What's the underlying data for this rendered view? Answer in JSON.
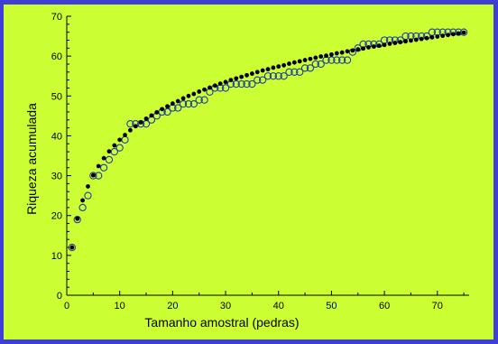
{
  "chart_data": {
    "type": "scatter",
    "title": "",
    "xlabel": "Tamanho amostral (pedras)",
    "ylabel": "Riqueza acumulada",
    "xlim": [
      0,
      76
    ],
    "ylim": [
      0,
      70
    ],
    "x_ticks": [
      0,
      10,
      20,
      30,
      40,
      50,
      60,
      70
    ],
    "y_ticks": [
      0,
      10,
      20,
      30,
      40,
      50,
      60,
      70
    ],
    "grid": false,
    "legend": "none",
    "colors": {
      "background": "#ccff33",
      "frame": "#3f3fd6",
      "filled_series": "#000000",
      "open_series_stroke": "#1f3fa6"
    },
    "series": [
      {
        "marker": "filled-circle",
        "x": [
          1,
          2,
          3,
          4,
          5,
          6,
          7,
          8,
          9,
          10,
          11,
          12,
          13,
          14,
          15,
          16,
          17,
          18,
          19,
          20,
          21,
          22,
          23,
          24,
          25,
          26,
          27,
          28,
          29,
          30,
          31,
          32,
          33,
          34,
          35,
          36,
          37,
          38,
          39,
          40,
          41,
          42,
          43,
          44,
          45,
          46,
          47,
          48,
          49,
          50,
          51,
          52,
          53,
          54,
          55,
          56,
          57,
          58,
          59,
          60,
          61,
          62,
          63,
          64,
          65,
          66,
          67,
          68,
          69,
          70,
          71,
          72,
          73,
          74,
          75
        ],
        "values": [
          12.0,
          19.2,
          23.8,
          27.3,
          30.1,
          32.4,
          34.4,
          36.1,
          37.6,
          39.0,
          40.2,
          41.4,
          42.4,
          43.4,
          44.3,
          45.1,
          45.9,
          46.7,
          47.4,
          48.1,
          48.7,
          49.4,
          50.0,
          50.5,
          51.1,
          51.6,
          52.1,
          52.6,
          53.1,
          53.5,
          54.0,
          54.4,
          54.8,
          55.2,
          55.6,
          56.0,
          56.4,
          56.7,
          57.1,
          57.4,
          57.7,
          58.1,
          58.4,
          58.7,
          59.0,
          59.3,
          59.6,
          59.9,
          60.1,
          60.4,
          60.7,
          60.9,
          61.2,
          61.4,
          61.7,
          61.9,
          62.2,
          62.4,
          62.6,
          62.8,
          63.1,
          63.3,
          63.5,
          63.7,
          63.9,
          64.1,
          64.3,
          64.5,
          64.7,
          64.9,
          65.1,
          65.3,
          65.5,
          65.7,
          65.9
        ]
      },
      {
        "marker": "open-circle",
        "x": [
          1,
          2,
          3,
          4,
          5,
          6,
          7,
          8,
          9,
          10,
          11,
          12,
          13,
          14,
          15,
          16,
          17,
          18,
          19,
          20,
          21,
          22,
          23,
          24,
          25,
          26,
          27,
          28,
          29,
          30,
          31,
          32,
          33,
          34,
          35,
          36,
          37,
          38,
          39,
          40,
          41,
          42,
          43,
          44,
          45,
          46,
          47,
          48,
          49,
          50,
          51,
          52,
          53,
          54,
          55,
          56,
          57,
          58,
          59,
          60,
          61,
          62,
          63,
          64,
          65,
          66,
          67,
          68,
          69,
          70,
          71,
          72,
          73,
          74,
          75
        ],
        "values": [
          12,
          19,
          22,
          25,
          30,
          30,
          32,
          34,
          36,
          37,
          39,
          43,
          43,
          43,
          43,
          44,
          45,
          46,
          46,
          47,
          47,
          48,
          48,
          48,
          49,
          49,
          51,
          52,
          52,
          52,
          53,
          53,
          53,
          53,
          53,
          54,
          54,
          55,
          55,
          55,
          55,
          56,
          56,
          56,
          57,
          57,
          58,
          58,
          59,
          59,
          59,
          59,
          59,
          61,
          62,
          63,
          63,
          63,
          63,
          64,
          64,
          64,
          64,
          65,
          65,
          65,
          65,
          65,
          66,
          66,
          66,
          66,
          66,
          66,
          66
        ]
      }
    ]
  }
}
